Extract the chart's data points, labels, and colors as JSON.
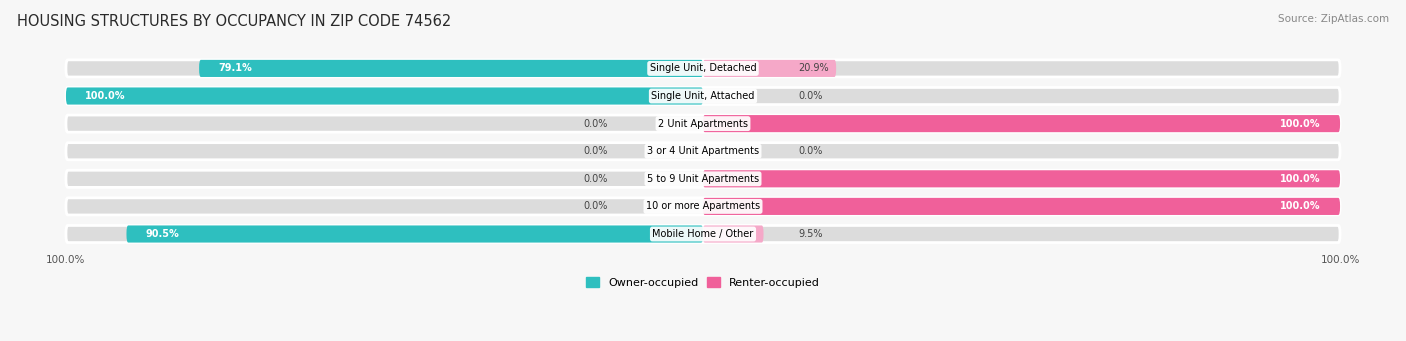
{
  "title": "HOUSING STRUCTURES BY OCCUPANCY IN ZIP CODE 74562",
  "source": "Source: ZipAtlas.com",
  "categories": [
    "Single Unit, Detached",
    "Single Unit, Attached",
    "2 Unit Apartments",
    "3 or 4 Unit Apartments",
    "5 to 9 Unit Apartments",
    "10 or more Apartments",
    "Mobile Home / Other"
  ],
  "owner_pct": [
    79.1,
    100.0,
    0.0,
    0.0,
    0.0,
    0.0,
    90.5
  ],
  "renter_pct": [
    20.9,
    0.0,
    100.0,
    0.0,
    100.0,
    100.0,
    9.5
  ],
  "owner_color": "#2ebfbf",
  "renter_color": "#f0609a",
  "owner_color_light": "#90d8d8",
  "renter_color_light": "#f5a8c8",
  "bar_bg_color": "#dcdcdc",
  "bar_bg_edge": "#c8c8c8",
  "fig_bg": "#f7f7f7",
  "bar_height": 0.62,
  "legend_owner": "Owner-occupied",
  "legend_renter": "Renter-occupied",
  "title_fontsize": 10.5,
  "label_fontsize": 7.0,
  "axis_label_fontsize": 7.5
}
